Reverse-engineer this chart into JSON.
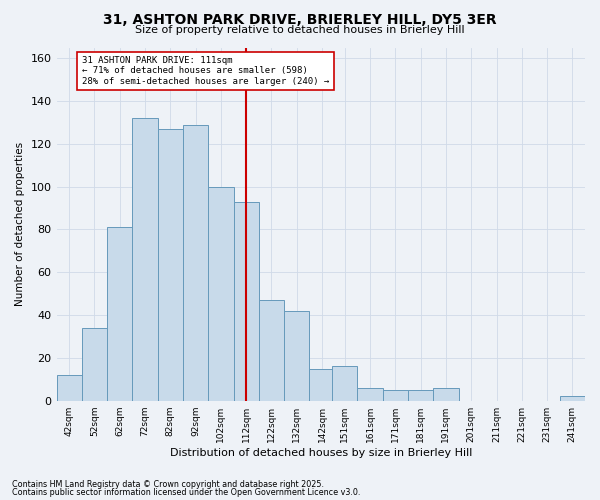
{
  "title": "31, ASHTON PARK DRIVE, BRIERLEY HILL, DY5 3ER",
  "subtitle": "Size of property relative to detached houses in Brierley Hill",
  "xlabel": "Distribution of detached houses by size in Brierley Hill",
  "ylabel": "Number of detached properties",
  "footnote1": "Contains HM Land Registry data © Crown copyright and database right 2025.",
  "footnote2": "Contains public sector information licensed under the Open Government Licence v3.0.",
  "annotation_line1": "31 ASHTON PARK DRIVE: 111sqm",
  "annotation_line2": "← 71% of detached houses are smaller (598)",
  "annotation_line3": "28% of semi-detached houses are larger (240) →",
  "property_size": 111,
  "bin_centers": [
    42,
    52,
    62,
    72,
    82,
    92,
    102,
    112,
    122,
    132,
    142,
    151,
    161,
    171,
    181,
    191,
    201,
    211,
    221,
    231,
    241
  ],
  "bin_labels": [
    "42sqm",
    "52sqm",
    "62sqm",
    "72sqm",
    "82sqm",
    "92sqm",
    "102sqm",
    "112sqm",
    "122sqm",
    "132sqm",
    "142sqm",
    "151sqm",
    "161sqm",
    "171sqm",
    "181sqm",
    "191sqm",
    "201sqm",
    "211sqm",
    "221sqm",
    "231sqm",
    "241sqm"
  ],
  "bar_heights": [
    12,
    34,
    81,
    132,
    127,
    129,
    100,
    93,
    47,
    42,
    15,
    16,
    6,
    5,
    5,
    6,
    0,
    0,
    0,
    0,
    2
  ],
  "bar_color": "#c8daea",
  "bar_edge_color": "#6699bb",
  "vline_color": "#cc0000",
  "vline_x": 112,
  "annotation_box_color": "#cc0000",
  "ylim": [
    0,
    165
  ],
  "yticks": [
    0,
    20,
    40,
    60,
    80,
    100,
    120,
    140,
    160
  ],
  "background_color": "#eef2f7",
  "grid_color": "#d0dae8"
}
